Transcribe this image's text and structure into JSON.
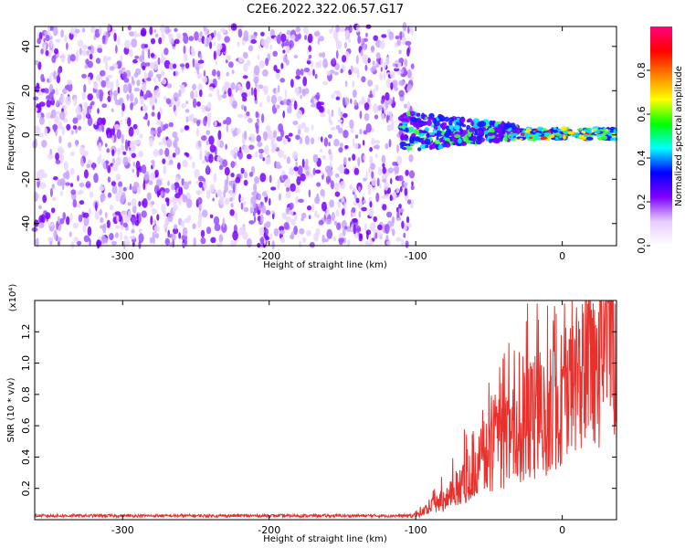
{
  "title": "C2E6.2022.322.06.57.G17",
  "chart_data": [
    {
      "type": "heatmap",
      "xlabel": "Height of straight line (km)",
      "ylabel": "Frequency (Hz)",
      "xlim": [
        -360,
        37
      ],
      "ylim": [
        -50,
        49
      ],
      "xticks": [
        -300,
        -200,
        -100,
        0
      ],
      "yticks": [
        -40,
        -20,
        0,
        20,
        40
      ],
      "xtick_labels": [
        "-300",
        "-200",
        "-100",
        "0"
      ],
      "ytick_labels": [
        "-40",
        "-20",
        "0",
        "20",
        "40"
      ],
      "colorbar": {
        "label": "Normalized spectral amplitude",
        "range": [
          0,
          1
        ],
        "ticks": [
          0.0,
          0.2,
          0.4,
          0.6,
          0.8
        ],
        "tick_labels": [
          "0.0",
          "0.2",
          "0.4",
          "0.6",
          "0.8"
        ],
        "colors": [
          "#ffffff",
          "#e6ccff",
          "#7f00ff",
          "#0000ff",
          "#00ffff",
          "#00ff00",
          "#ffff00",
          "#ff8000",
          "#ff0000",
          "#ff0080"
        ]
      },
      "regions": [
        {
          "x": [
            -360,
            -102
          ],
          "y": [
            -50,
            49
          ],
          "description_level": 0.25
        },
        {
          "x": [
            -110,
            -30
          ],
          "y": [
            -8,
            12
          ],
          "description_level": 0.45
        },
        {
          "x": [
            -30,
            37
          ],
          "y": [
            -2,
            3
          ],
          "description_level": 0.85
        }
      ]
    },
    {
      "type": "line",
      "xlabel": "Height of straight line (km)",
      "ylabel": "SNR (10 * v/v)",
      "multiplier": "(x10⁴)",
      "xlim": [
        -360,
        37
      ],
      "ylim": [
        0,
        1.4
      ],
      "xticks": [
        -300,
        -200,
        -100,
        0
      ],
      "yticks": [
        0.2,
        0.4,
        0.6,
        0.8,
        1.0,
        1.2
      ],
      "xtick_labels": [
        "-300",
        "-200",
        "-100",
        "0"
      ],
      "ytick_labels": [
        "0.2",
        "0.4",
        "0.6",
        "0.8",
        "1.0",
        "1.2"
      ],
      "color": "#e8302c",
      "series": [
        {
          "x": [
            -360,
            -300,
            -200,
            -120,
            -100,
            -90,
            -80,
            -70,
            -60,
            -50,
            -45,
            -40,
            -30,
            -20,
            -10,
            0,
            10,
            20,
            30,
            37
          ],
          "y": [
            0.02,
            0.02,
            0.02,
            0.02,
            0.03,
            0.08,
            0.15,
            0.25,
            0.35,
            0.45,
            0.5,
            0.55,
            0.6,
            0.7,
            0.8,
            0.9,
            1.05,
            1.2,
            1.3,
            1.35
          ]
        }
      ]
    }
  ]
}
